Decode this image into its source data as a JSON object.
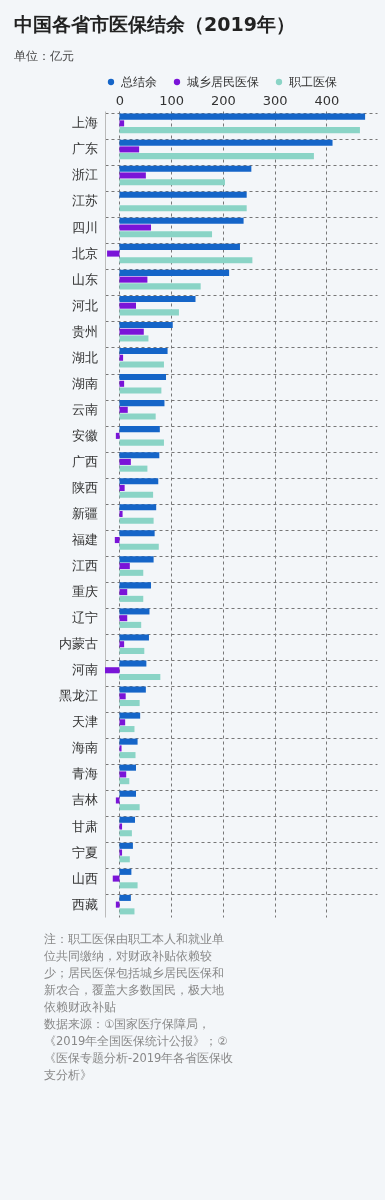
{
  "chart_data": {
    "type": "bar",
    "orientation": "horizontal",
    "title": "中国各省市医保结余（2019年）",
    "subtitle": "单位：亿元",
    "categories": [
      "上海",
      "广东",
      "浙江",
      "江苏",
      "四川",
      "北京",
      "山东",
      "河北",
      "贵州",
      "湖北",
      "湖南",
      "云南",
      "安徽",
      "广西",
      "陕西",
      "新疆",
      "福建",
      "江西",
      "重庆",
      "辽宁",
      "内蒙古",
      "河南",
      "黑龙江",
      "天津",
      "海南",
      "青海",
      "吉林",
      "甘肃",
      "宁夏",
      "山西",
      "西藏"
    ],
    "series": [
      {
        "name": "总结余",
        "color": "#1565c8",
        "values": [
          475,
          412,
          255,
          246,
          240,
          233,
          212,
          147,
          103,
          93,
          90,
          87,
          78,
          77,
          75,
          71,
          68,
          66,
          61,
          58,
          57,
          52,
          51,
          40,
          35,
          32,
          32,
          30,
          26,
          23,
          22
        ]
      },
      {
        "name": "城乡居民医保",
        "color": "#7a14d8",
        "values": [
          9,
          38,
          51,
          null,
          61,
          -24,
          54,
          32,
          47,
          7,
          9,
          16,
          -7,
          22,
          10,
          6,
          -9,
          20,
          15,
          15,
          9,
          -28,
          12,
          11,
          4,
          13,
          -7,
          5,
          5,
          -13,
          -7
        ]
      },
      {
        "name": "职工医保",
        "color": "#8ad4c6",
        "values": [
          465,
          376,
          204,
          246,
          179,
          257,
          157,
          115,
          56,
          86,
          81,
          70,
          86,
          54,
          65,
          66,
          76,
          46,
          46,
          42,
          48,
          79,
          39,
          29,
          31,
          19,
          39,
          24,
          20,
          35,
          29
        ]
      }
    ],
    "xlim": [
      -28,
      498
    ],
    "xticks": [
      0,
      100,
      200,
      300,
      400
    ],
    "grid": true,
    "legend": "top",
    "annotations": [
      "注：职工医保由职工本人和就业单位共同缴纳，对财政补贴依赖较少；居民医保包括城乡居民医保和新农合，覆盖大多数国民，极大地依赖财政补贴",
      "数据来源：①国家医疗保障局，《2019年全国医保统计公报》；②《医保专题分析-2019年各省医保收支分析》"
    ]
  }
}
